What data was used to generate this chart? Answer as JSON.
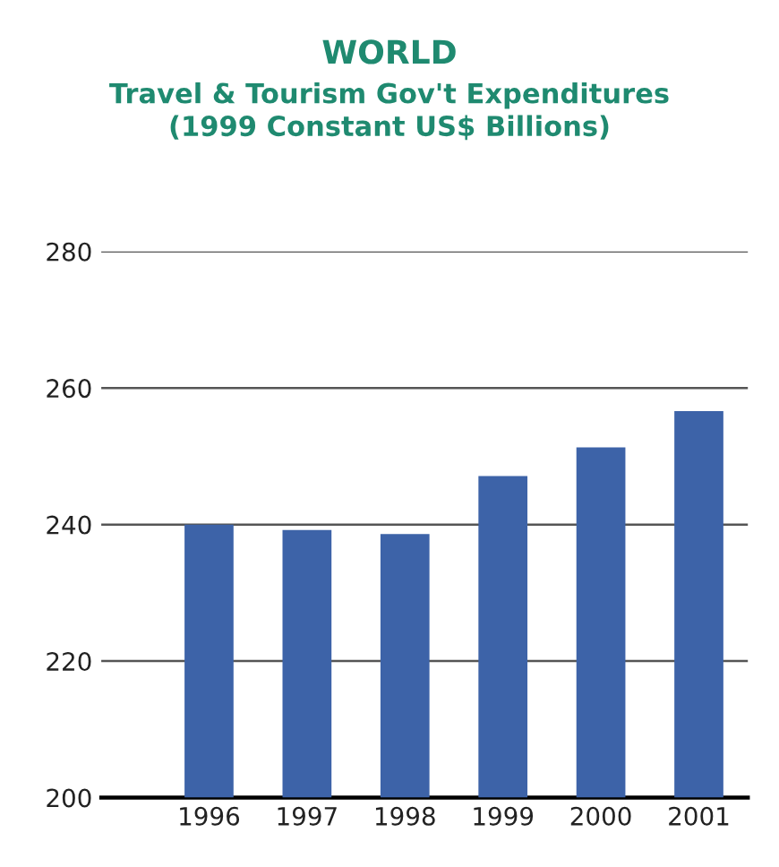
{
  "chart_data": {
    "type": "bar",
    "title": "WORLD",
    "subtitle": "Travel & Tourism Gov't Expenditures\n(1999 Constant US$ Billions)",
    "categories": [
      "1996",
      "1997",
      "1998",
      "1999",
      "2000",
      "2001"
    ],
    "values": [
      240,
      239.2,
      238.6,
      247.1,
      251.3,
      256.6
    ],
    "color": "#3d63a8",
    "ylim": [
      200,
      280
    ],
    "yticks": [
      200,
      220,
      240,
      260,
      280
    ],
    "grid": "y"
  }
}
